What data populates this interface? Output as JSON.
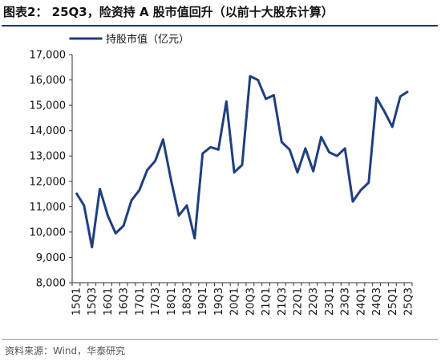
{
  "title": "图表2： 25Q3，险资持 A 股市值回升（以前十大股东计算）",
  "source": "资料来源：Wind，华泰研究",
  "colors": {
    "line": "#1f3f7f",
    "rule": "#1f3864"
  },
  "chart_data": {
    "type": "line",
    "ylim": [
      8000,
      17000
    ],
    "yticks": [
      "8,000",
      "9,000",
      "10,000",
      "11,000",
      "12,000",
      "13,000",
      "14,000",
      "15,000",
      "16,000",
      "17,000"
    ],
    "xtick_labels": [
      "15Q1",
      "15Q3",
      "16Q1",
      "16Q3",
      "17Q1",
      "17Q3",
      "18Q1",
      "18Q3",
      "19Q1",
      "19Q3",
      "20Q1",
      "20Q3",
      "21Q1",
      "21Q3",
      "22Q1",
      "22Q3",
      "23Q1",
      "23Q3",
      "24Q1",
      "24Q3",
      "25Q1",
      "25Q3"
    ],
    "legend_position": "top-left",
    "grid": false,
    "series": [
      {
        "name": "持股市值（亿元）",
        "x": [
          "15Q1",
          "15Q2",
          "15Q3",
          "15Q4",
          "16Q1",
          "16Q2",
          "16Q3",
          "16Q4",
          "17Q1",
          "17Q2",
          "17Q3",
          "17Q4",
          "18Q1",
          "18Q2",
          "18Q3",
          "18Q4",
          "19Q1",
          "19Q2",
          "19Q3",
          "19Q4",
          "20Q1",
          "20Q2",
          "20Q3",
          "20Q4",
          "21Q1",
          "21Q2",
          "21Q3",
          "21Q4",
          "22Q1",
          "22Q2",
          "22Q3",
          "22Q4",
          "23Q1",
          "23Q2",
          "23Q3",
          "23Q4",
          "24Q1",
          "24Q2",
          "24Q3",
          "24Q4",
          "25Q1",
          "25Q2",
          "25Q3"
        ],
        "values": [
          11550,
          11050,
          9400,
          11700,
          10650,
          9950,
          10250,
          11250,
          11650,
          12450,
          12800,
          13650,
          12050,
          10650,
          11050,
          9750,
          13100,
          13350,
          13250,
          15150,
          12350,
          12650,
          16150,
          16000,
          15250,
          15400,
          13550,
          13250,
          12350,
          13300,
          12400,
          13750,
          13150,
          13000,
          13300,
          11200,
          11650,
          11950,
          15300,
          14750,
          14150,
          15350,
          15550
        ]
      }
    ]
  }
}
